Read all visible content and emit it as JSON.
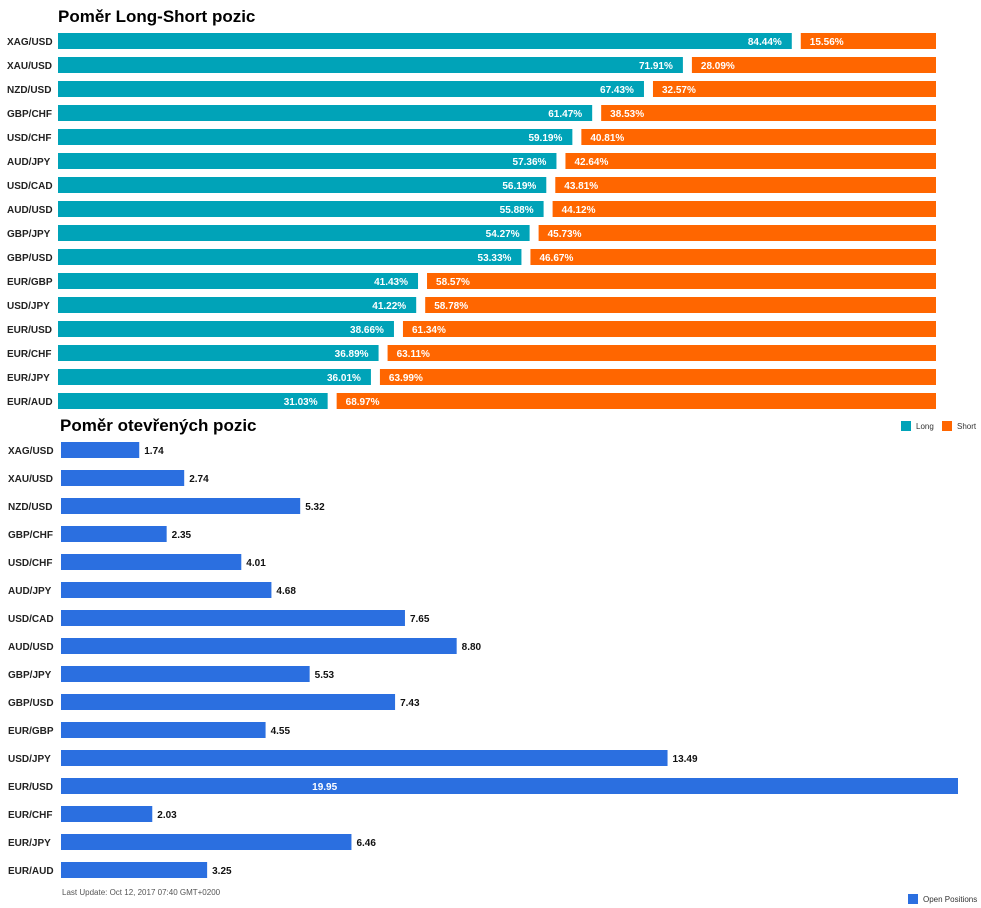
{
  "chart_data": [
    {
      "type": "bar",
      "stacked": true,
      "orientation": "horizontal",
      "title": "Poměr Long-Short pozic",
      "categories": [
        "XAG/USD",
        "XAU/USD",
        "NZD/USD",
        "GBP/CHF",
        "USD/CHF",
        "AUD/JPY",
        "USD/CAD",
        "AUD/USD",
        "GBP/JPY",
        "GBP/USD",
        "EUR/GBP",
        "USD/JPY",
        "EUR/USD",
        "EUR/CHF",
        "EUR/JPY",
        "EUR/AUD"
      ],
      "series": [
        {
          "name": "Long",
          "color": "#00a3b8",
          "labels": [
            "84.44%",
            "71.91%",
            "67.43%",
            "61.47%",
            "59.19%",
            "57.36%",
            "56.19%",
            "55.88%",
            "54.27%",
            "53.33%",
            "41.43%",
            "41.22%",
            "38.66%",
            "36.89%",
            "36.01%",
            "31.03%"
          ],
          "values": [
            84.44,
            71.91,
            67.43,
            61.47,
            59.19,
            57.36,
            56.19,
            55.88,
            54.27,
            53.33,
            41.43,
            41.22,
            38.66,
            36.89,
            36.01,
            31.03
          ]
        },
        {
          "name": "Short",
          "color": "#ff6600",
          "labels": [
            "15.56%",
            "28.09%",
            "32.57%",
            "38.53%",
            "40.81%",
            "42.64%",
            "43.81%",
            "44.12%",
            "45.73%",
            "46.67%",
            "58.57%",
            "58.78%",
            "61.34%",
            "63.11%",
            "63.99%",
            "68.97%"
          ],
          "values": [
            15.56,
            28.09,
            32.57,
            38.53,
            40.81,
            42.64,
            43.81,
            44.12,
            45.73,
            46.67,
            58.57,
            58.78,
            61.34,
            63.11,
            63.99,
            68.97
          ]
        }
      ],
      "xlim": [
        0,
        100
      ],
      "legend": "right"
    },
    {
      "type": "bar",
      "orientation": "horizontal",
      "title": "Poměr otevřených pozic",
      "categories": [
        "XAG/USD",
        "XAU/USD",
        "NZD/USD",
        "GBP/CHF",
        "USD/CHF",
        "AUD/JPY",
        "USD/CAD",
        "AUD/USD",
        "GBP/JPY",
        "GBP/USD",
        "EUR/GBP",
        "USD/JPY",
        "EUR/USD",
        "EUR/CHF",
        "EUR/JPY",
        "EUR/AUD"
      ],
      "series": [
        {
          "name": "Open Positions",
          "color": "#2b6fe0",
          "labels": [
            "1.74",
            "2.74",
            "5.32",
            "2.35",
            "4.01",
            "4.68",
            "7.65",
            "8.80",
            "5.53",
            "7.43",
            "4.55",
            "13.49",
            "19.95",
            "2.03",
            "6.46",
            "3.25"
          ],
          "values": [
            1.74,
            2.74,
            5.32,
            2.35,
            4.01,
            4.68,
            7.65,
            8.8,
            5.53,
            7.43,
            4.55,
            13.49,
            19.95,
            2.03,
            6.46,
            3.25
          ]
        }
      ],
      "xlim": [
        0,
        19.95
      ],
      "legend": "bottom-right"
    }
  ],
  "footer": {
    "last_update": "Last Update: Oct 12, 2017 07:40 GMT+0200"
  }
}
